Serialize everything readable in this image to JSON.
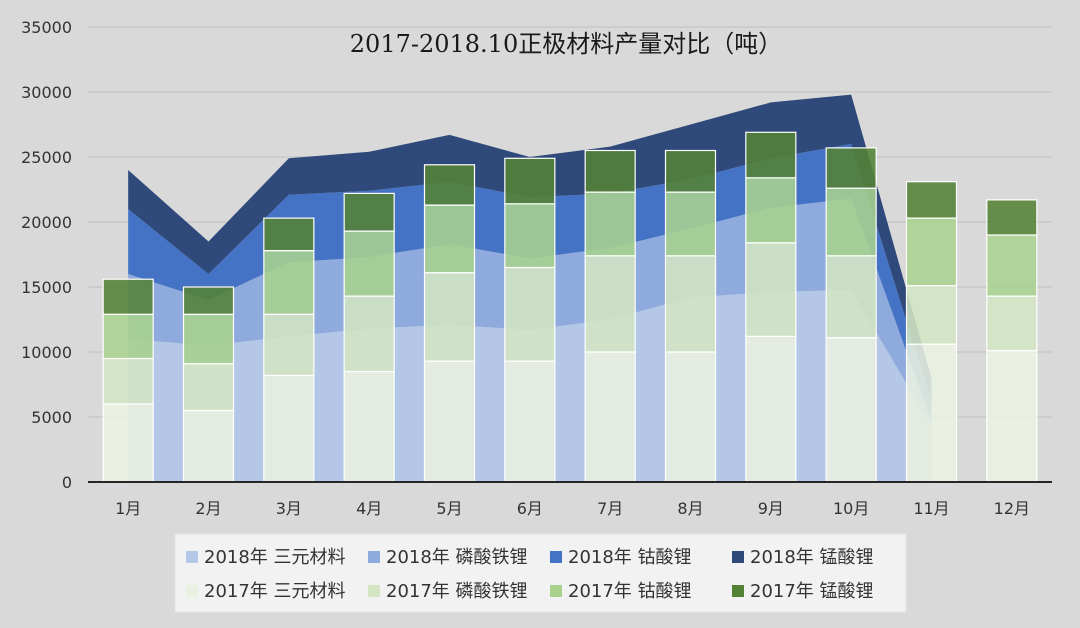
{
  "chart_data": {
    "type": "stacked-area-and-stacked-bar",
    "title": "2017-2018.10正极材料产量对比（吨）",
    "ylim": [
      0,
      35000
    ],
    "yticks": [
      0,
      5000,
      10000,
      15000,
      20000,
      25000,
      30000,
      35000
    ],
    "ytick_labels": [
      "0",
      "5000",
      "10000",
      "15000",
      "20000",
      "25000",
      "30000",
      "35000"
    ],
    "categories": [
      "1月",
      "2月",
      "3月",
      "4月",
      "5月",
      "6月",
      "7月",
      "8月",
      "9月",
      "10月",
      "11月",
      "12月"
    ],
    "grid": true,
    "legend_position": "bottom",
    "series_2018_area": [
      {
        "name": "2018年 三元材料",
        "color": "#b4c7e7",
        "values": [
          11000,
          10500,
          11200,
          11800,
          12100,
          11700,
          12500,
          14200,
          14600,
          14800,
          4300,
          null
        ]
      },
      {
        "name": "2018年 磷酸铁锂",
        "color": "#8faadc",
        "values": [
          5000,
          3500,
          5700,
          5500,
          6200,
          5500,
          5500,
          5300,
          6500,
          7000,
          400,
          null
        ]
      },
      {
        "name": "2018年 钴酸锂",
        "color": "#4472c4",
        "values": [
          5000,
          2000,
          5200,
          5100,
          4800,
          4700,
          4200,
          3800,
          3800,
          4200,
          1500,
          null
        ]
      },
      {
        "name": "2018年 锰酸锂",
        "color": "#2f4a7a",
        "values": [
          3000,
          2500,
          2800,
          3000,
          3600,
          3100,
          3600,
          4200,
          4300,
          3800,
          1800,
          null
        ]
      }
    ],
    "series_2017_bar": [
      {
        "name": "2017年 三元材料",
        "color": "#eaf1e1",
        "values": [
          6000,
          5500,
          8200,
          8500,
          9300,
          9300,
          10000,
          10000,
          11200,
          11100,
          10600,
          10100
        ]
      },
      {
        "name": "2017年 磷酸铁锂",
        "color": "#d3e5c3",
        "values": [
          3500,
          3600,
          4700,
          5800,
          6800,
          7200,
          7400,
          7400,
          7200,
          6300,
          4500,
          4200
        ]
      },
      {
        "name": "2017年 钴酸锂",
        "color": "#a9d18e",
        "values": [
          3400,
          3800,
          4900,
          5000,
          5200,
          4900,
          4900,
          4900,
          5000,
          5200,
          5200,
          4700
        ]
      },
      {
        "name": "2017年 锰酸锂",
        "color": "#548235",
        "values": [
          2700,
          2100,
          2500,
          2900,
          3100,
          3500,
          3200,
          3200,
          3500,
          3100,
          2800,
          2700
        ]
      }
    ]
  }
}
